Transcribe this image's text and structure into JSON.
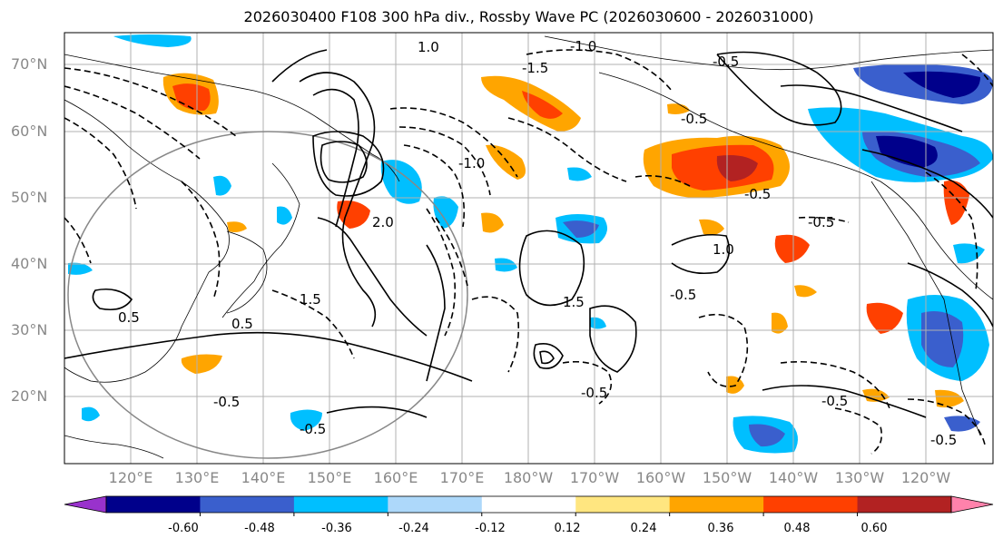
{
  "title": "2026030400 F108 300 hPa div., Rossby Wave PC (2026030600 - 2026031000)",
  "lat_labels": [
    "70°N",
    "60°N",
    "50°N",
    "40°N",
    "30°N",
    "20°N"
  ],
  "lon_labels": [
    "120°E",
    "130°E",
    "140°E",
    "150°E",
    "160°E",
    "170°E",
    "180°W",
    "170°W",
    "160°W",
    "150°W",
    "140°W",
    "130°W",
    "120°W"
  ],
  "colorbar": {
    "ticks": [
      "-0.60",
      "-0.48",
      "-0.36",
      "-0.24",
      "-0.12",
      "0.12",
      "0.24",
      "0.36",
      "0.48",
      "0.60"
    ],
    "colors": [
      "#9932cc",
      "#00008b",
      "#3a5fcd",
      "#00bfff",
      "#add8fa",
      "#ffffff",
      "#ffe680",
      "#ffa500",
      "#ff4000",
      "#b22222",
      "#ff82ab"
    ]
  },
  "contour_labels": [
    "-1.0",
    "1.0",
    "-0.5",
    "-1.5",
    "-0.5",
    "-0.5",
    "-0.5",
    "-0.5",
    "1.0",
    "1.5",
    "-0.5",
    "0.5",
    "-0.5",
    "-0.5",
    "-0.5",
    "-0.5",
    "2.0",
    "-1.0",
    "1.5",
    "0.5"
  ]
}
